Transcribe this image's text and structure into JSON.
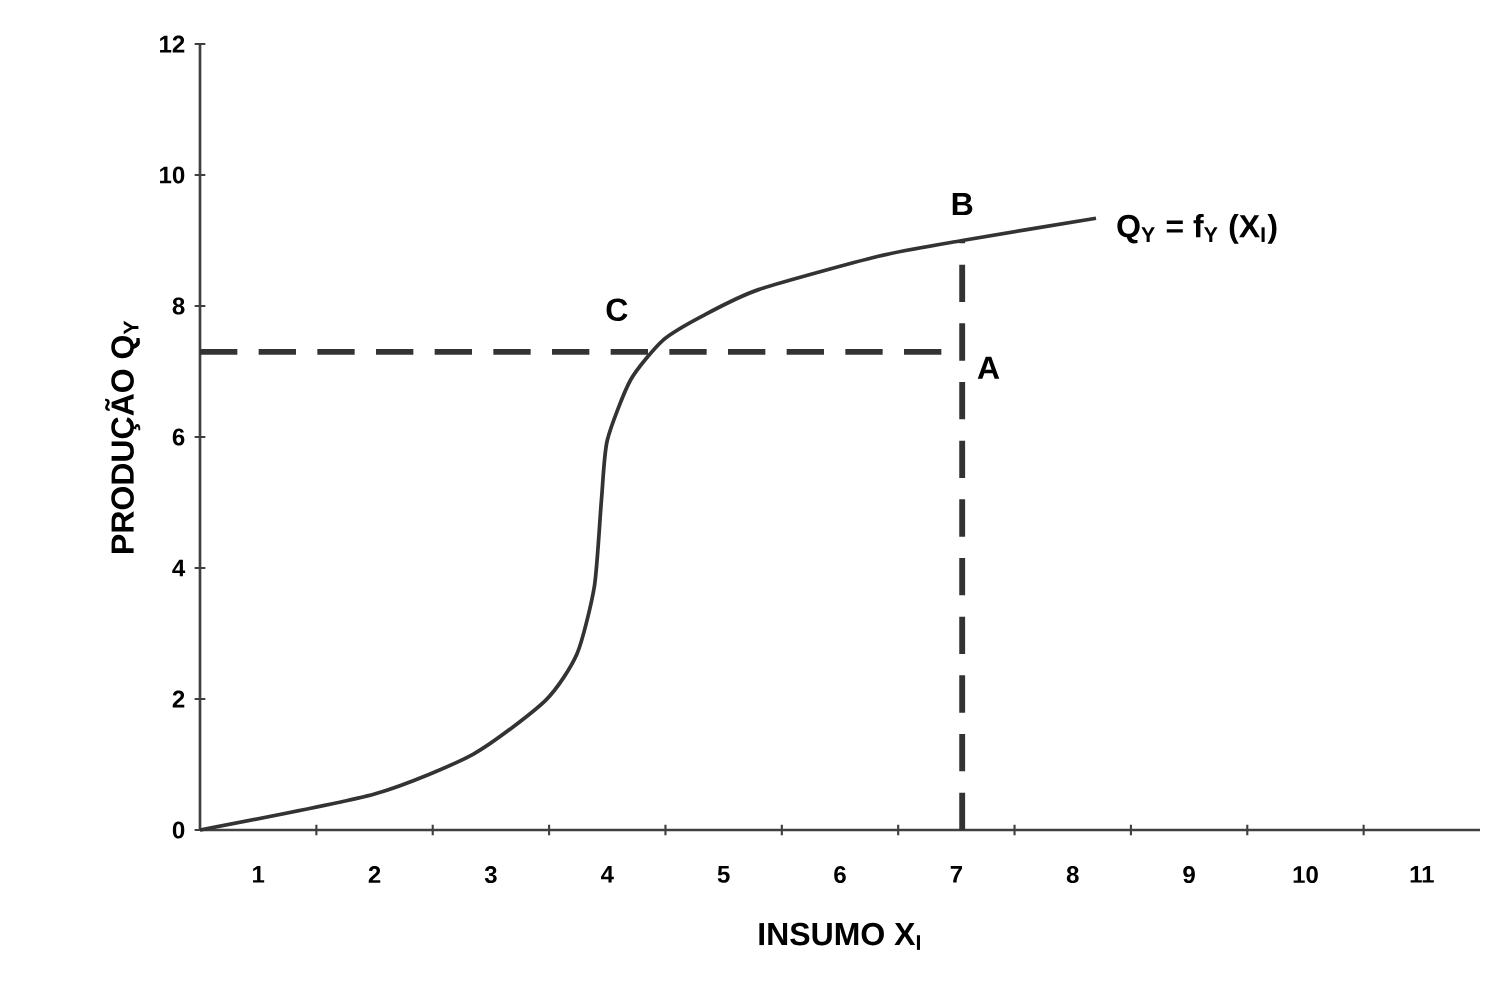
{
  "chart_data": {
    "type": "line",
    "xlabel": "INSUMO X$_{I}$",
    "ylabel": "PRODUÇÃO Q$_{Y}$",
    "xlim": [
      0.5,
      11.5
    ],
    "ylim": [
      0,
      12
    ],
    "xticks": [
      1,
      2,
      3,
      4,
      5,
      6,
      7,
      8,
      9,
      10,
      11,
      {
        "value": 1.5,
        "label": null
      },
      {
        "value": 2.5,
        "label": null
      },
      {
        "value": 3.5,
        "label": null
      },
      {
        "value": 4.5,
        "label": null
      },
      {
        "value": 5.5,
        "label": null
      },
      {
        "value": 6.5,
        "label": null
      },
      {
        "value": 7.5,
        "label": null
      },
      {
        "value": 8.5,
        "label": null
      },
      {
        "value": 9.5,
        "label": null
      },
      {
        "value": 10.5,
        "label": null
      }
    ],
    "yticks": [
      0,
      2,
      4,
      6,
      8,
      10,
      12
    ],
    "grid": false,
    "marker": "none",
    "series": [
      {
        "color": "#333333",
        "line_style": "solid",
        "x": [
          0.5,
          2.0,
          2.85,
          3.47,
          3.74,
          3.89,
          3.95,
          4.0,
          4.2,
          4.48,
          4.82,
          5.3,
          6.33,
          7.05,
          8.2
        ],
        "values": [
          0,
          0.55,
          1.16,
          1.98,
          2.69,
          3.73,
          5.04,
          5.95,
          6.87,
          7.48,
          7.85,
          8.25,
          8.76,
          9.0,
          9.34
        ]
      },
      {
        "color": "#333333",
        "line_style": "dashed",
        "x": [
          0.5,
          7.05
        ],
        "values": [
          7.3,
          7.3
        ]
      },
      {
        "color": "#333333",
        "line_style": "dashed",
        "x": [
          7.05,
          7.05
        ],
        "values": [
          0,
          9.0
        ]
      }
    ],
    "annotations": [
      {
        "text": "A",
        "x": 7.05,
        "y": 7.3
      },
      {
        "text": "B",
        "x": 7.05,
        "y": 9.0
      },
      {
        "text": "C",
        "x": 4.4,
        "y": 7.3
      },
      {
        "text": "Q$_{Y}$ = f$_{Y}$ (X$_{I}$)",
        "x": 8.2,
        "y": 9.34
      }
    ]
  }
}
